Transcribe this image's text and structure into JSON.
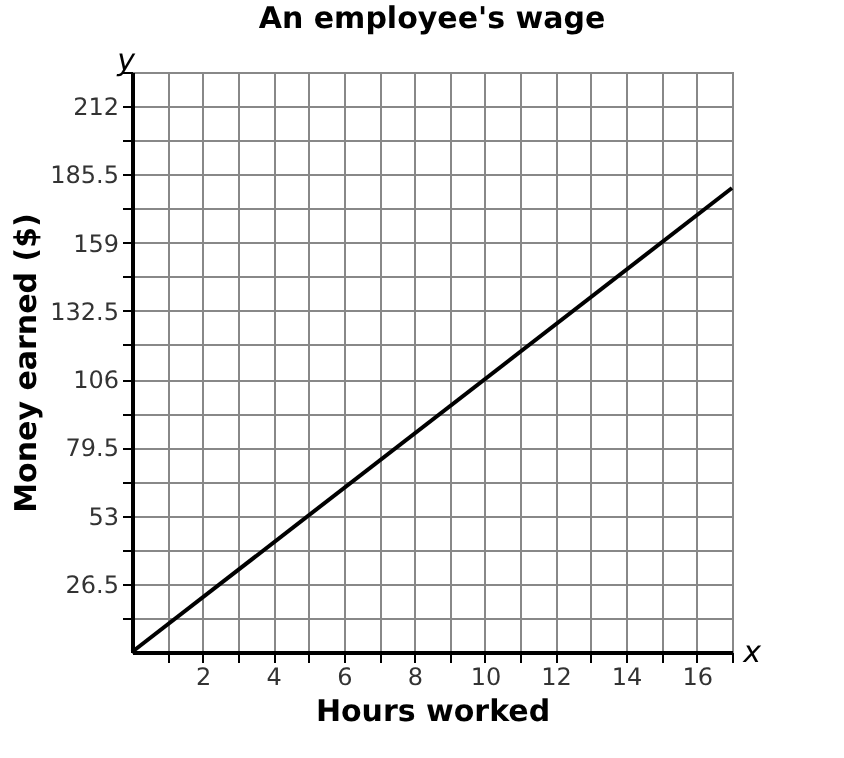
{
  "chart_data": {
    "type": "line",
    "title": "An employee's wage",
    "xlabel": "Hours worked",
    "ylabel": "Money earned ($)",
    "annotations": [
      "x",
      "y"
    ],
    "x": [
      0,
      17
    ],
    "series": [
      {
        "color": "#000000",
        "values": [
          0,
          180.2
        ]
      }
    ],
    "xlim": [
      0,
      17
    ],
    "ylim": [
      0,
      225.25
    ],
    "xticks": [
      {
        "value": 1,
        "label": null
      },
      2,
      {
        "value": 3,
        "label": null
      },
      4,
      {
        "value": 5,
        "label": null
      },
      6,
      {
        "value": 7,
        "label": null
      },
      8,
      {
        "value": 9,
        "label": null
      },
      10,
      {
        "value": 11,
        "label": null
      },
      12,
      {
        "value": 13,
        "label": null
      },
      14,
      {
        "value": 15,
        "label": null
      },
      16,
      {
        "value": 17,
        "label": null
      }
    ],
    "yticks": [
      {
        "value": 13.25,
        "label": null
      },
      26.5,
      {
        "value": 39.75,
        "label": null
      },
      53,
      {
        "value": 66.25,
        "label": null
      },
      79.5,
      {
        "value": 92.75,
        "label": null
      },
      106,
      {
        "value": 119.25,
        "label": null
      },
      132.5,
      {
        "value": 145.75,
        "label": null
      },
      159,
      {
        "value": 172.25,
        "label": null
      },
      185.5,
      {
        "value": 198.75,
        "label": null
      },
      212,
      {
        "value": 225.25,
        "label": null
      }
    ],
    "grid": true,
    "marker": "none",
    "line_style": "solid"
  }
}
